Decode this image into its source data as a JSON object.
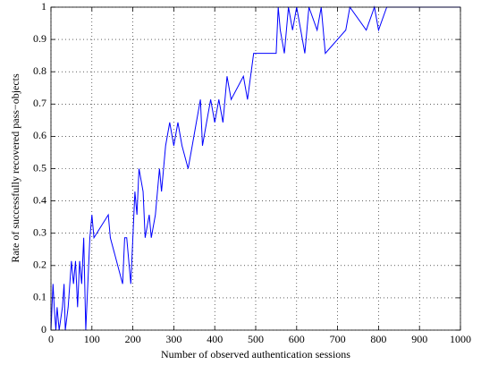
{
  "chart_data": {
    "type": "line",
    "x_label": "Number of observed authentication sessions",
    "y_label": "Rate of successfully recovered pass−objects",
    "xlim": [
      0,
      1000
    ],
    "xticks": [
      0,
      100,
      200,
      300,
      400,
      500,
      600,
      700,
      800,
      900,
      1000
    ],
    "ylim": [
      0,
      1
    ],
    "yticks": [
      0,
      0.1,
      0.2,
      0.3,
      0.4,
      0.5,
      0.6,
      0.7,
      0.8,
      0.9,
      1
    ],
    "grid": true,
    "series": [
      {
        "color": "#0000ff",
        "x": [
          0,
          5,
          8,
          12,
          15,
          20,
          28,
          32,
          35,
          42,
          50,
          55,
          60,
          65,
          70,
          75,
          80,
          85,
          90,
          95,
          100,
          105,
          140,
          145,
          175,
          180,
          185,
          195,
          200,
          205,
          210,
          215,
          225,
          230,
          240,
          245,
          255,
          265,
          270,
          280,
          290,
          300,
          310,
          320,
          335,
          345,
          355,
          365,
          370,
          380,
          390,
          400,
          410,
          420,
          430,
          440,
          470,
          480,
          495,
          550,
          555,
          560,
          570,
          580,
          590,
          600,
          610,
          620,
          630,
          650,
          660,
          670,
          720,
          730,
          770,
          790,
          800,
          820,
          1000
        ],
        "values": [
          0,
          0.143,
          0.071,
          0,
          0.071,
          0,
          0.071,
          0.143,
          0,
          0.071,
          0.214,
          0.143,
          0.214,
          0.071,
          0.214,
          0.143,
          0.286,
          0,
          0.143,
          0.286,
          0.357,
          0.286,
          0.357,
          0.286,
          0.143,
          0.286,
          0.286,
          0.143,
          0.286,
          0.429,
          0.357,
          0.5,
          0.429,
          0.286,
          0.357,
          0.286,
          0.357,
          0.5,
          0.429,
          0.571,
          0.643,
          0.571,
          0.643,
          0.571,
          0.5,
          0.571,
          0.643,
          0.714,
          0.571,
          0.643,
          0.714,
          0.643,
          0.714,
          0.643,
          0.786,
          0.714,
          0.786,
          0.714,
          0.857,
          0.857,
          1,
          0.929,
          0.857,
          1,
          0.929,
          1,
          0.929,
          0.857,
          1,
          0.929,
          1,
          0.857,
          0.929,
          1,
          0.929,
          1,
          0.929,
          1,
          1
        ]
      }
    ]
  }
}
